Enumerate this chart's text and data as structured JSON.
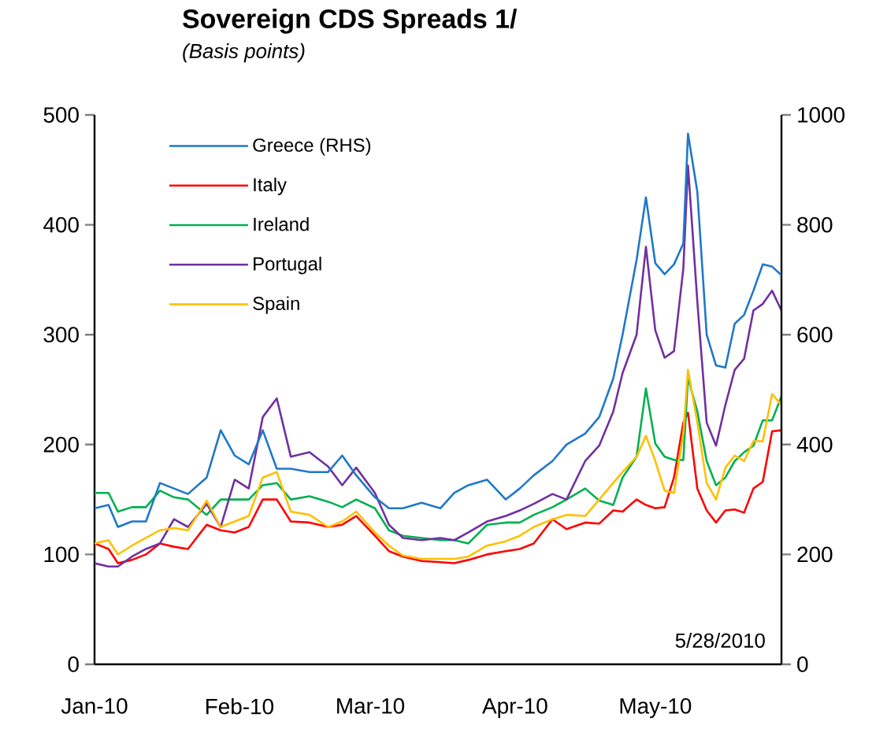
{
  "chart_data": {
    "type": "line",
    "title": "Sovereign CDS Spreads 1/",
    "subtitle": "(Basis points)",
    "x": [
      "2010-01-01",
      "2010-01-04",
      "2010-01-06",
      "2010-01-09",
      "2010-01-12",
      "2010-01-15",
      "2010-01-18",
      "2010-01-21",
      "2010-01-25",
      "2010-01-28",
      "2010-01-31",
      "2010-02-03",
      "2010-02-06",
      "2010-02-09",
      "2010-02-12",
      "2010-02-16",
      "2010-02-20",
      "2010-02-23",
      "2010-02-26",
      "2010-03-02",
      "2010-03-05",
      "2010-03-08",
      "2010-03-12",
      "2010-03-16",
      "2010-03-19",
      "2010-03-22",
      "2010-03-26",
      "2010-03-30",
      "2010-04-02",
      "2010-04-05",
      "2010-04-09",
      "2010-04-12",
      "2010-04-16",
      "2010-04-19",
      "2010-04-22",
      "2010-04-24",
      "2010-04-27",
      "2010-04-29",
      "2010-05-01",
      "2010-05-03",
      "2010-05-05",
      "2010-05-07",
      "2010-05-08",
      "2010-05-10",
      "2010-05-12",
      "2010-05-14",
      "2010-05-16",
      "2010-05-18",
      "2010-05-20",
      "2010-05-22",
      "2010-05-24",
      "2010-05-26",
      "2010-05-28"
    ],
    "series": [
      {
        "name": "Greece (RHS)",
        "color": "#1f78c8",
        "axis": "y2",
        "values": [
          284,
          290,
          250,
          260,
          260,
          330,
          320,
          310,
          340,
          426,
          380,
          364,
          426,
          356,
          356,
          350,
          350,
          380,
          344,
          304,
          284,
          284,
          294,
          284,
          312,
          326,
          336,
          300,
          320,
          344,
          370,
          400,
          420,
          450,
          520,
          600,
          736,
          850,
          730,
          710,
          728,
          766,
          966,
          860,
          600,
          544,
          540,
          620,
          636,
          680,
          728,
          724,
          708
        ]
      },
      {
        "name": "Italy",
        "color": "#ff0000",
        "values": [
          110,
          105,
          92,
          95,
          100,
          110,
          107,
          105,
          127,
          122,
          120,
          125,
          150,
          150,
          130,
          129,
          125,
          127,
          135,
          117,
          103,
          98,
          94,
          93,
          92,
          95,
          100,
          103,
          105,
          110,
          132,
          123,
          129,
          128,
          140,
          139,
          150,
          145,
          142,
          143,
          170,
          220,
          229,
          160,
          140,
          129,
          140,
          141,
          138,
          160,
          166,
          212,
          213
        ]
      },
      {
        "name": "Ireland",
        "color": "#00b050",
        "values": [
          156,
          156,
          139,
          143,
          143,
          158,
          152,
          150,
          136,
          150,
          150,
          150,
          163,
          165,
          150,
          153,
          148,
          143,
          150,
          142,
          122,
          117,
          115,
          113,
          113,
          110,
          127,
          129,
          129,
          136,
          143,
          150,
          160,
          149,
          145,
          170,
          189,
          251,
          201,
          189,
          186,
          186,
          261,
          230,
          185,
          163,
          170,
          185,
          193,
          199,
          222,
          222,
          244
        ]
      },
      {
        "name": "Portugal",
        "color": "#7030a0",
        "values": [
          92,
          89,
          89,
          98,
          105,
          110,
          132,
          125,
          146,
          125,
          168,
          160,
          225,
          242,
          189,
          193,
          180,
          163,
          179,
          156,
          127,
          115,
          113,
          115,
          113,
          120,
          130,
          135,
          140,
          146,
          155,
          150,
          185,
          199,
          230,
          265,
          300,
          380,
          304,
          279,
          285,
          360,
          454,
          330,
          220,
          199,
          236,
          268,
          278,
          322,
          328,
          340,
          322
        ]
      },
      {
        "name": "Spain",
        "color": "#ffc000",
        "values": [
          110,
          113,
          100,
          108,
          115,
          122,
          124,
          122,
          149,
          125,
          130,
          135,
          170,
          175,
          139,
          136,
          125,
          130,
          139,
          120,
          108,
          99,
          96,
          96,
          96,
          98,
          108,
          112,
          117,
          125,
          132,
          136,
          135,
          150,
          165,
          175,
          189,
          208,
          185,
          158,
          156,
          210,
          268,
          220,
          165,
          150,
          179,
          190,
          185,
          203,
          203,
          246,
          236
        ]
      }
    ],
    "xlim": [
      "2010-01-01",
      "2010-05-28"
    ],
    "xticks": [
      {
        "value": "2010-01-01",
        "label": "Jan-10"
      },
      {
        "value": "2010-02-01",
        "label": "Feb-10"
      },
      {
        "value": "2010-03-01",
        "label": "Mar-10"
      },
      {
        "value": "2010-04-01",
        "label": "Apr-10"
      },
      {
        "value": "2010-05-01",
        "label": "May-10"
      }
    ],
    "ylim": [
      0,
      500
    ],
    "yticks": [
      0,
      100,
      200,
      300,
      400,
      500
    ],
    "y2lim": [
      0,
      1000
    ],
    "y2ticks": [
      0,
      200,
      400,
      600,
      800,
      1000
    ],
    "legend": "top left",
    "grid": false,
    "annotations": [
      "5/28/2010"
    ]
  }
}
